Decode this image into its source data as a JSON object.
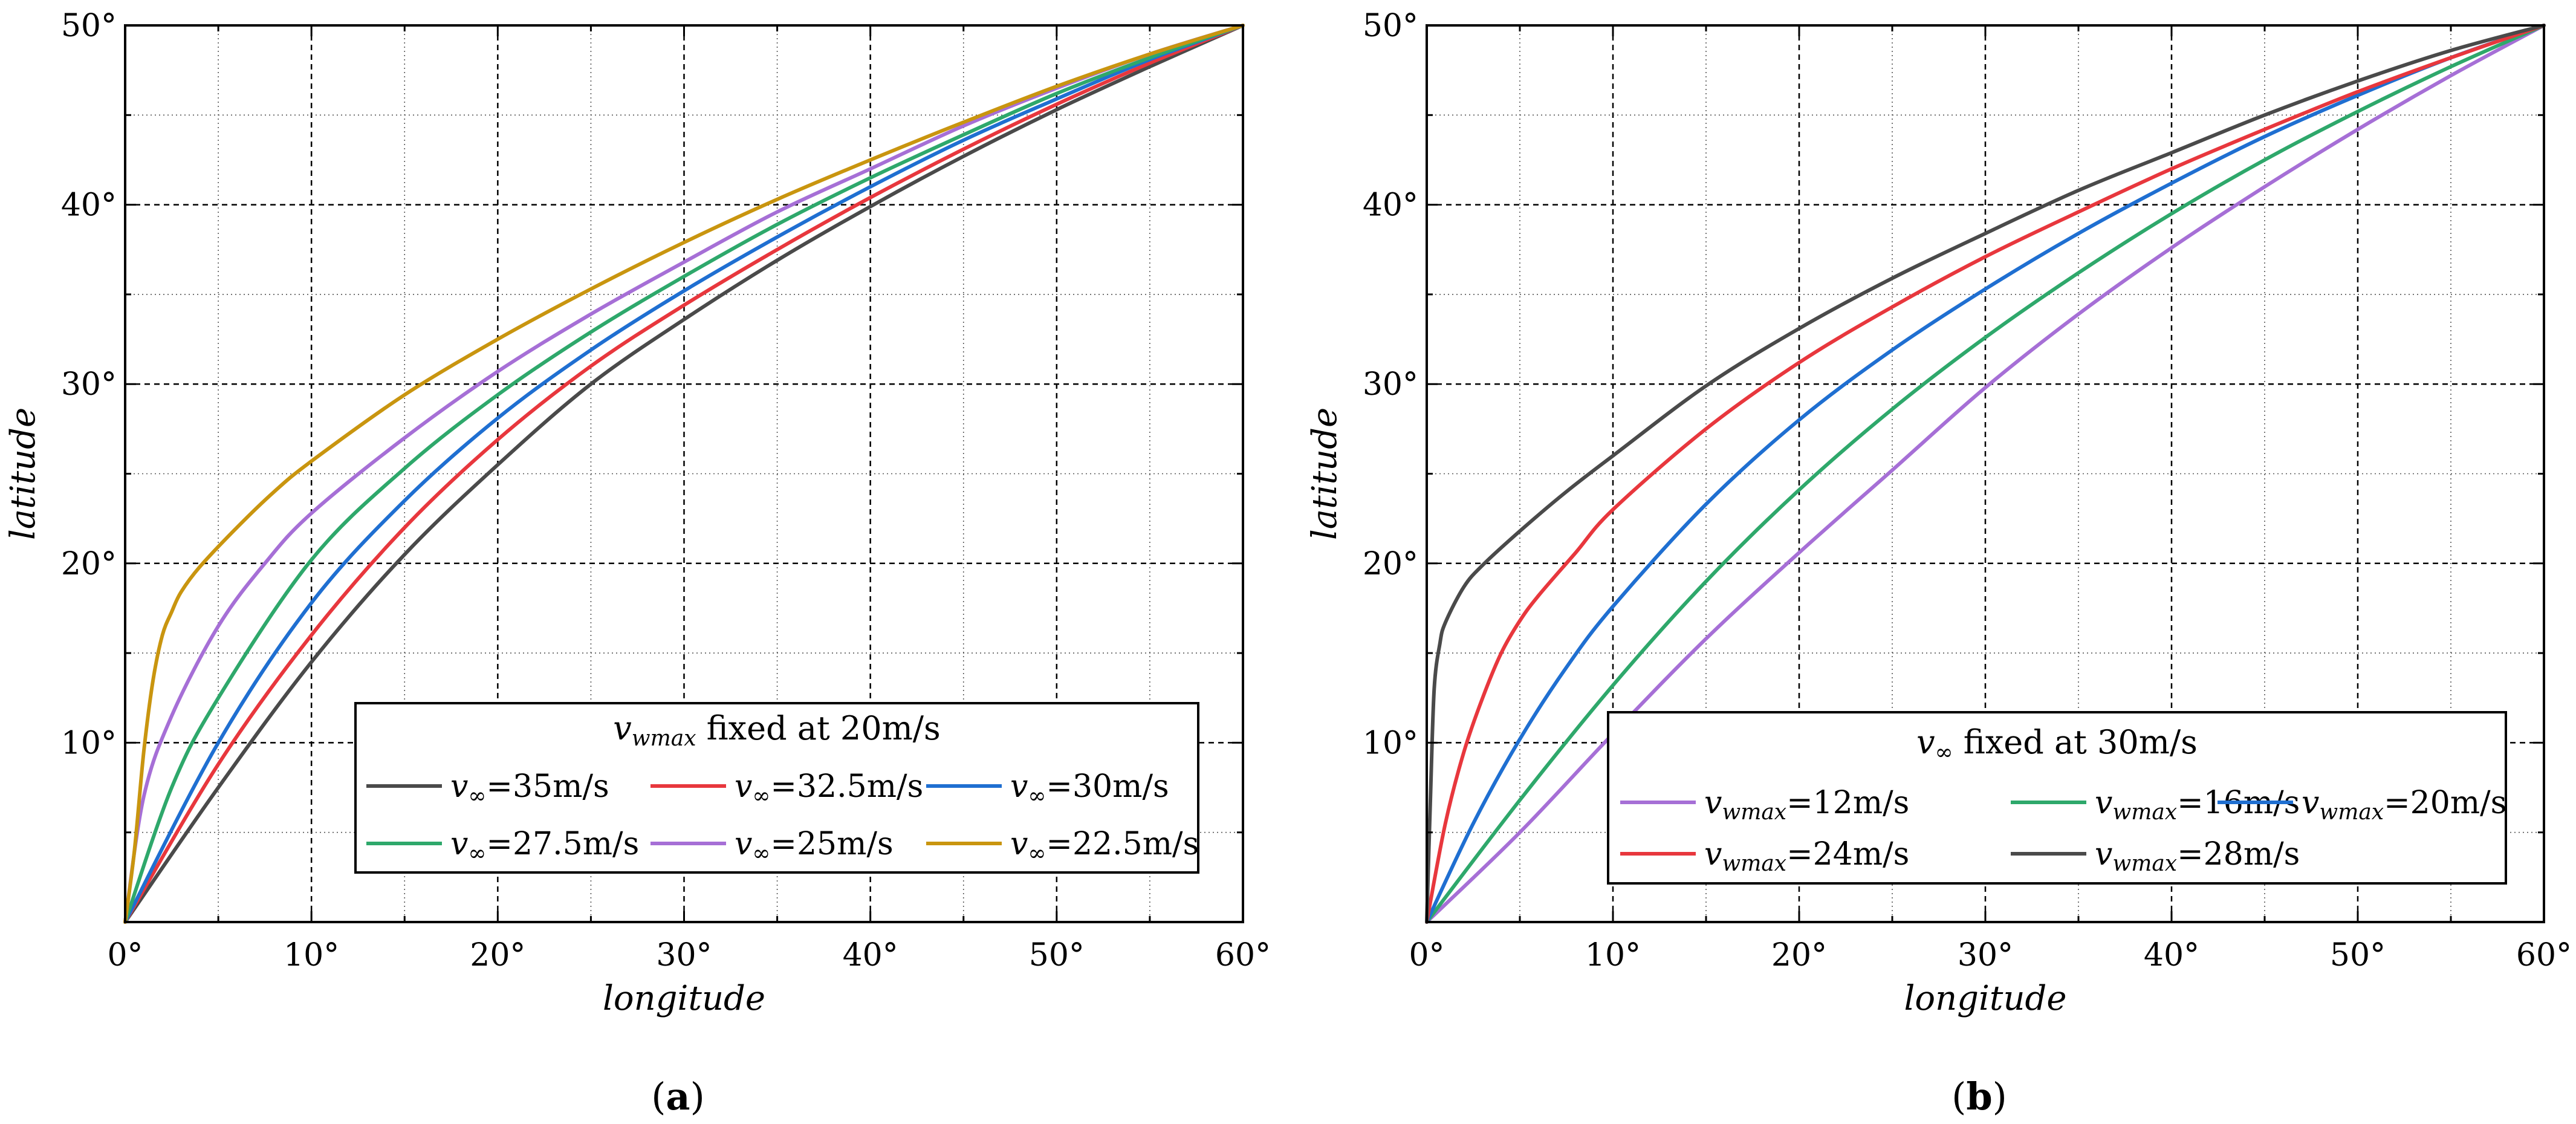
{
  "chart_data": [
    {
      "type": "line",
      "panel_label": "(a)",
      "xlabel": "longitude",
      "ylabel": "latitude",
      "xlim": [
        0,
        60
      ],
      "ylim": [
        0,
        50
      ],
      "xticks": [
        "0°",
        "10°",
        "20°",
        "30°",
        "40°",
        "50°",
        "60°"
      ],
      "yticks": [
        "10°",
        "20°",
        "30°",
        "40°",
        "50°"
      ],
      "grid": true,
      "legend": {
        "placement": "bottom-right",
        "title": "v_wmax fixed at 20m/s",
        "title_parts": [
          "v",
          "wmax",
          " fixed at 20m/s"
        ]
      },
      "series": [
        {
          "name": "v∞=35m/s",
          "sym": "v",
          "sub": "∞",
          "value": "=35m/s",
          "color": "#4a4a4a",
          "x": [
            0,
            5,
            10,
            15,
            20,
            25,
            30,
            35,
            40,
            45,
            50,
            55,
            60
          ],
          "y": [
            0,
            7.5,
            14.5,
            20.5,
            25.5,
            30,
            33.6,
            36.9,
            39.9,
            42.7,
            45.3,
            47.7,
            50
          ]
        },
        {
          "name": "v∞=32.5m/s",
          "sym": "v",
          "sub": "∞",
          "value": "=32.5m/s",
          "color": "#e8373d",
          "x": [
            0,
            5,
            10,
            15,
            20,
            25,
            30,
            35,
            40,
            45,
            50,
            55,
            60
          ],
          "y": [
            0,
            8.8,
            16,
            22,
            26.9,
            31,
            34.4,
            37.5,
            40.4,
            43.1,
            45.6,
            47.9,
            50
          ]
        },
        {
          "name": "v∞=30m/s",
          "sym": "v",
          "sub": "∞",
          "value": "=30m/s",
          "color": "#1f6fd1",
          "x": [
            0,
            5,
            10,
            15,
            20,
            25,
            30,
            35,
            40,
            45,
            50,
            55,
            60
          ],
          "y": [
            0,
            10,
            17.8,
            23.5,
            28.1,
            31.9,
            35.2,
            38.2,
            41,
            43.6,
            45.9,
            48.1,
            50
          ]
        },
        {
          "name": "v∞=27.5m/s",
          "sym": "v",
          "sub": "∞",
          "value": "=27.5m/s",
          "color": "#2ea86b",
          "x": [
            0,
            2.5,
            5,
            10,
            15,
            20,
            25,
            30,
            35,
            40,
            45,
            50,
            55,
            60
          ],
          "y": [
            0,
            7.5,
            12.5,
            20.2,
            25.3,
            29.4,
            32.9,
            36,
            38.9,
            41.5,
            43.9,
            46.2,
            48.2,
            50
          ]
        },
        {
          "name": "v∞=25m/s",
          "sym": "v",
          "sub": "∞",
          "value": "=25m/s",
          "color": "#a66fd6",
          "x": [
            0,
            1,
            2.5,
            5,
            7.5,
            10,
            15,
            20,
            25,
            30,
            35,
            40,
            45,
            50,
            55,
            60
          ],
          "y": [
            0,
            7,
            11.5,
            16.5,
            20,
            22.8,
            27,
            30.7,
            33.9,
            36.8,
            39.6,
            42,
            44.4,
            46.5,
            48.4,
            50
          ]
        },
        {
          "name": "v∞=22.5m/s",
          "sym": "v",
          "sub": "∞",
          "value": "=22.5m/s",
          "color": "#c9950f",
          "x": [
            0,
            0.5,
            1,
            1.5,
            2,
            2.5,
            3,
            4,
            6,
            8,
            10,
            15,
            20,
            25,
            30,
            35,
            40,
            45,
            50,
            55,
            60
          ],
          "y": [
            0,
            4,
            9.5,
            13.5,
            16,
            17.3,
            18.4,
            19.8,
            22,
            24,
            25.7,
            29.4,
            32.5,
            35.3,
            37.9,
            40.3,
            42.5,
            44.6,
            46.6,
            48.4,
            50
          ]
        }
      ]
    },
    {
      "type": "line",
      "panel_label": "(b)",
      "xlabel": "longitude",
      "ylabel": "latitude",
      "xlim": [
        0,
        60
      ],
      "ylim": [
        0,
        50
      ],
      "xticks": [
        "0°",
        "10°",
        "20°",
        "30°",
        "40°",
        "50°",
        "60°"
      ],
      "yticks": [
        "10°",
        "20°",
        "30°",
        "40°",
        "50°"
      ],
      "grid": true,
      "legend": {
        "placement": "bottom-right",
        "title": "v∞ fixed at 30m/s",
        "title_parts": [
          "v",
          "∞",
          " fixed at 30m/s"
        ]
      },
      "series": [
        {
          "name": "v_wmax=12m/s",
          "sym": "v",
          "sub": "wmax",
          "value": "=12m/s",
          "color": "#a66fd6",
          "x": [
            0,
            5,
            10,
            15,
            20,
            25,
            30,
            35,
            40,
            45,
            50,
            55,
            60
          ],
          "y": [
            0,
            5,
            10.5,
            15.8,
            20.6,
            25.2,
            29.8,
            33.9,
            37.6,
            41,
            44.2,
            47.2,
            50
          ]
        },
        {
          "name": "v_wmax=16m/s",
          "sym": "v",
          "sub": "wmax",
          "value": "=16m/s",
          "color": "#2ea86b",
          "x": [
            0,
            5,
            10,
            15,
            20,
            25,
            30,
            35,
            40,
            45,
            50,
            55,
            60
          ],
          "y": [
            0,
            6.8,
            13.2,
            19,
            24.1,
            28.6,
            32.6,
            36.2,
            39.5,
            42.5,
            45.2,
            47.7,
            50
          ]
        },
        {
          "name": "v_wmax=20m/s",
          "sym": "v",
          "sub": "wmax",
          "value": "=20m/s",
          "color": "#1f6fd1",
          "x": [
            0,
            2.5,
            5,
            7.5,
            10,
            15,
            20,
            25,
            30,
            35,
            40,
            45,
            50,
            55,
            60
          ],
          "y": [
            0,
            5.5,
            10.2,
            14.2,
            17.6,
            23.3,
            28,
            31.9,
            35.3,
            38.4,
            41.2,
            43.8,
            46.1,
            48.2,
            50
          ]
        },
        {
          "name": "v_wmax=24m/s",
          "sym": "v",
          "sub": "wmax",
          "value": "=24m/s",
          "color": "#e8373d",
          "x": [
            0,
            1,
            2,
            3,
            4,
            5,
            6,
            8,
            10,
            15,
            20,
            25,
            30,
            35,
            40,
            45,
            50,
            55,
            60
          ],
          "y": [
            0,
            5.5,
            9.5,
            12.5,
            15,
            16.8,
            18.2,
            20.6,
            23,
            27.5,
            31.2,
            34.3,
            37.1,
            39.6,
            42,
            44.2,
            46.3,
            48.2,
            50
          ]
        },
        {
          "name": "v_wmax=28m/s",
          "sym": "v",
          "sub": "wmax",
          "value": "=28m/s",
          "color": "#4a4a4a",
          "x": [
            0,
            0.2,
            0.4,
            0.7,
            1,
            2,
            3,
            5,
            7.5,
            10,
            15,
            20,
            25,
            30,
            35,
            40,
            45,
            50,
            55,
            60
          ],
          "y": [
            0,
            7,
            13,
            15.5,
            16.7,
            18.7,
            19.9,
            21.8,
            24,
            26,
            29.9,
            33.1,
            35.9,
            38.4,
            40.8,
            42.9,
            45,
            46.9,
            48.6,
            50
          ]
        }
      ]
    }
  ]
}
